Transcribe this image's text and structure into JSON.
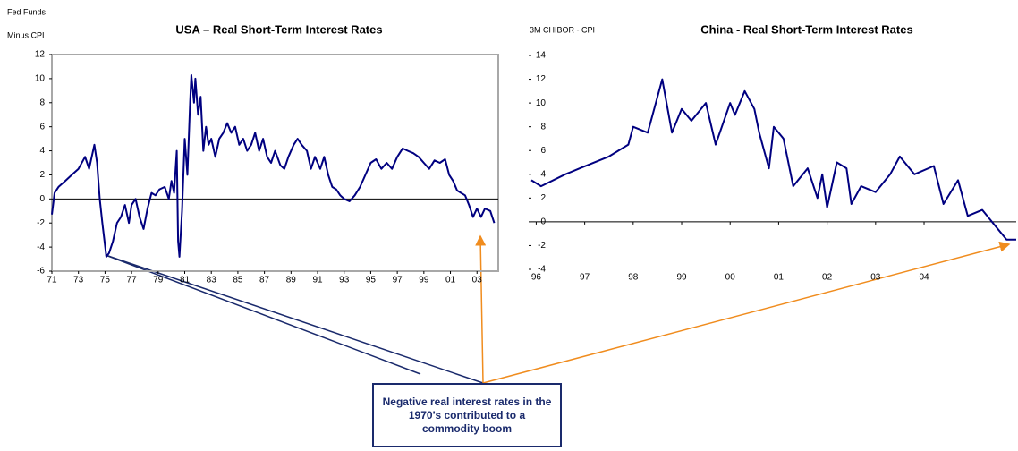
{
  "chart_data": [
    {
      "type": "line",
      "title": "USA – Real Short-Term Interest Rates",
      "ylabel": [
        "Fed Funds",
        "Minus CPI"
      ],
      "color": "#000080",
      "frame": true,
      "xlim": [
        1971,
        2004.6
      ],
      "ylim": [
        -6,
        12
      ],
      "xticks": [
        {
          "value": 1971,
          "label": "71"
        },
        {
          "value": 1973,
          "label": "73"
        },
        {
          "value": 1975,
          "label": "75"
        },
        {
          "value": 1977,
          "label": "77"
        },
        {
          "value": 1979,
          "label": "79"
        },
        {
          "value": 1981,
          "label": "81"
        },
        {
          "value": 1983,
          "label": "83"
        },
        {
          "value": 1985,
          "label": "85"
        },
        {
          "value": 1987,
          "label": "87"
        },
        {
          "value": 1989,
          "label": "89"
        },
        {
          "value": 1991,
          "label": "91"
        },
        {
          "value": 1993,
          "label": "93"
        },
        {
          "value": 1995,
          "label": "95"
        },
        {
          "value": 1997,
          "label": "97"
        },
        {
          "value": 1999,
          "label": "99"
        },
        {
          "value": 2001,
          "label": "01"
        },
        {
          "value": 2003,
          "label": "03"
        }
      ],
      "yticks": [
        12,
        10,
        8,
        6,
        4,
        2,
        0,
        -2,
        -4,
        -6
      ],
      "x": [
        1971.0,
        1971.2,
        1971.5,
        1972.0,
        1972.5,
        1973.0,
        1973.5,
        1973.8,
        1974.2,
        1974.4,
        1974.6,
        1974.8,
        1975.1,
        1975.3,
        1975.6,
        1975.9,
        1976.2,
        1976.5,
        1976.8,
        1977.0,
        1977.3,
        1977.6,
        1977.9,
        1978.2,
        1978.5,
        1978.8,
        1979.1,
        1979.5,
        1979.8,
        1980.0,
        1980.2,
        1980.4,
        1980.5,
        1980.6,
        1980.8,
        1981.0,
        1981.2,
        1981.4,
        1981.5,
        1981.7,
        1981.8,
        1982.0,
        1982.2,
        1982.4,
        1982.6,
        1982.8,
        1983.0,
        1983.3,
        1983.6,
        1983.9,
        1984.2,
        1984.5,
        1984.8,
        1985.1,
        1985.4,
        1985.7,
        1986.0,
        1986.3,
        1986.6,
        1986.9,
        1987.2,
        1987.5,
        1987.8,
        1988.2,
        1988.5,
        1988.8,
        1989.2,
        1989.5,
        1989.8,
        1990.2,
        1990.5,
        1990.8,
        1991.2,
        1991.5,
        1991.8,
        1992.1,
        1992.4,
        1992.7,
        1993.0,
        1993.4,
        1993.8,
        1994.2,
        1994.6,
        1995.0,
        1995.4,
        1995.8,
        1996.2,
        1996.6,
        1997.0,
        1997.4,
        1997.8,
        1998.2,
        1998.6,
        1999.0,
        1999.4,
        1999.8,
        2000.2,
        2000.6,
        2000.9,
        2001.2,
        2001.5,
        2001.8,
        2002.1,
        2002.4,
        2002.7,
        2003.0,
        2003.3,
        2003.6,
        2004.0,
        2004.3
      ],
      "values": [
        -1.3,
        0.5,
        1,
        1.5,
        2,
        2.5,
        3.5,
        2.5,
        4.5,
        3,
        0,
        -2,
        -4.8,
        -4.5,
        -3.5,
        -2,
        -1.5,
        -0.5,
        -2,
        -0.5,
        0,
        -1.5,
        -2.5,
        -0.8,
        0.5,
        0.3,
        0.8,
        1,
        0,
        1.5,
        0.5,
        4,
        -3.5,
        -4.8,
        -1,
        5,
        2,
        8,
        10.3,
        8,
        10,
        7,
        8.5,
        4,
        6,
        4.5,
        5,
        3.5,
        5,
        5.5,
        6.3,
        5.5,
        6,
        4.5,
        5,
        4,
        4.5,
        5.5,
        4,
        5,
        3.5,
        3,
        4,
        2.8,
        2.5,
        3.5,
        4.5,
        5,
        4.5,
        4,
        2.5,
        3.5,
        2.5,
        3.5,
        2,
        1,
        0.8,
        0.3,
        0,
        -0.2,
        0.3,
        1,
        2,
        3,
        3.3,
        2.5,
        3,
        2.5,
        3.5,
        4.2,
        4,
        3.8,
        3.5,
        3,
        2.5,
        3.2,
        3,
        3.3,
        2,
        1.5,
        0.7,
        0.5,
        0.3,
        -0.5,
        -1.5,
        -0.8,
        -1.5,
        -0.8,
        -1,
        -2
      ]
    },
    {
      "type": "line",
      "title": "China - Real Short-Term Interest Rates",
      "ylabel": [
        "3M CHIBOR - CPI"
      ],
      "color": "#000080",
      "frame": false,
      "xlim": [
        1995.9,
        2005.9
      ],
      "ylim": [
        -4,
        14
      ],
      "xticks": [
        {
          "value": 1996,
          "label": "96"
        },
        {
          "value": 1997,
          "label": "97"
        },
        {
          "value": 1998,
          "label": "98"
        },
        {
          "value": 1999,
          "label": "99"
        },
        {
          "value": 2000,
          "label": "00"
        },
        {
          "value": 2001,
          "label": "01"
        },
        {
          "value": 2002,
          "label": "02"
        },
        {
          "value": 2003,
          "label": "03"
        },
        {
          "value": 2004,
          "label": "04"
        }
      ],
      "yticks": [
        14,
        12,
        10,
        8,
        6,
        4,
        2,
        0,
        -2,
        -4
      ],
      "x": [
        1995.9,
        1996.1,
        1996.6,
        1996.9,
        1997.5,
        1997.9,
        1998.0,
        1998.3,
        1998.6,
        1998.8,
        1999.0,
        1999.2,
        1999.5,
        1999.7,
        2000.0,
        2000.1,
        2000.3,
        2000.5,
        2000.6,
        2000.8,
        2000.9,
        2001.1,
        2001.3,
        2001.6,
        2001.8,
        2001.9,
        2002.0,
        2002.2,
        2002.4,
        2002.5,
        2002.7,
        2003.0,
        2003.3,
        2003.5,
        2003.8,
        2004.2,
        2004.4,
        2004.7,
        2004.9,
        2005.2,
        2005.5,
        2005.7,
        2005.9
      ],
      "values": [
        3.5,
        3,
        4,
        4.5,
        5.5,
        6.5,
        8,
        7.5,
        12,
        7.5,
        9.5,
        8.5,
        10,
        6.5,
        10,
        9,
        11,
        9.5,
        7.5,
        4.5,
        8,
        7,
        3,
        4.5,
        2,
        4,
        1.2,
        5,
        4.5,
        1.5,
        3,
        2.5,
        4,
        5.5,
        4,
        4.7,
        1.5,
        3.5,
        0.5,
        1,
        -0.5,
        -1.5,
        -1.5
      ]
    }
  ],
  "annotation": "Negative real interest rates in the 1970’s contributed to a commodity boom"
}
